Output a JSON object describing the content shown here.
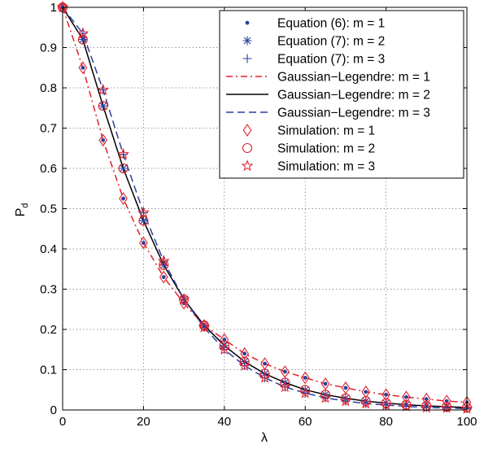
{
  "chart_data": {
    "type": "line",
    "xlabel": "λ",
    "ylabel": "P",
    "ylabel_sub": "d",
    "xlim": [
      0,
      100
    ],
    "ylim": [
      0,
      1
    ],
    "xticks": [
      0,
      20,
      40,
      60,
      80,
      100
    ],
    "yticks": [
      0,
      0.1,
      0.2,
      0.3,
      0.4,
      0.5,
      0.6,
      0.7,
      0.8,
      0.9,
      1
    ],
    "xtick_labels": [
      "0",
      "20",
      "40",
      "60",
      "80",
      "100"
    ],
    "ytick_labels": [
      "0",
      "0.1",
      "0.2",
      "0.3",
      "0.4",
      "0.5",
      "0.6",
      "0.7",
      "0.8",
      "0.9",
      "1"
    ],
    "grid": true,
    "legend_position": "top-right",
    "x": [
      0,
      5,
      10,
      15,
      20,
      25,
      30,
      35,
      40,
      45,
      50,
      55,
      60,
      65,
      70,
      75,
      80,
      85,
      90,
      95,
      100
    ],
    "series": [
      {
        "name": "Equation (6): m = 1",
        "marker": "dot",
        "line": "none",
        "color": "#2b3f9e",
        "values": [
          1.0,
          0.85,
          0.67,
          0.525,
          0.415,
          0.33,
          0.265,
          0.21,
          0.175,
          0.14,
          0.115,
          0.095,
          0.08,
          0.065,
          0.055,
          0.045,
          0.038,
          0.032,
          0.027,
          0.022,
          0.019
        ]
      },
      {
        "name": "Equation (7): m = 2",
        "marker": "asterisk",
        "line": "none",
        "color": "#2b3f9e",
        "values": [
          1.0,
          0.92,
          0.755,
          0.6,
          0.47,
          0.36,
          0.275,
          0.21,
          0.16,
          0.12,
          0.09,
          0.068,
          0.05,
          0.038,
          0.029,
          0.022,
          0.017,
          0.013,
          0.01,
          0.008,
          0.006
        ]
      },
      {
        "name": "Equation (7): m = 3",
        "marker": "plus",
        "line": "none",
        "color": "#2b3f9e",
        "values": [
          1.0,
          0.935,
          0.795,
          0.635,
          0.49,
          0.37,
          0.275,
          0.205,
          0.15,
          0.11,
          0.08,
          0.057,
          0.042,
          0.03,
          0.022,
          0.016,
          0.012,
          0.009,
          0.006,
          0.005,
          0.003
        ]
      },
      {
        "name": "Gaussian−Legendre: m = 1",
        "marker": "none",
        "line": "dashdot",
        "color": "#e0202a",
        "values": [
          1.0,
          0.85,
          0.67,
          0.525,
          0.415,
          0.33,
          0.265,
          0.21,
          0.175,
          0.14,
          0.115,
          0.095,
          0.08,
          0.065,
          0.055,
          0.045,
          0.038,
          0.032,
          0.027,
          0.022,
          0.019
        ]
      },
      {
        "name": "Gaussian−Legendre: m = 2",
        "marker": "none",
        "line": "solid",
        "color": "#000000",
        "values": [
          1.0,
          0.92,
          0.755,
          0.6,
          0.47,
          0.36,
          0.275,
          0.21,
          0.16,
          0.12,
          0.09,
          0.068,
          0.05,
          0.038,
          0.029,
          0.022,
          0.017,
          0.013,
          0.01,
          0.008,
          0.006
        ]
      },
      {
        "name": "Gaussian−Legendre: m = 3",
        "marker": "none",
        "line": "dashed",
        "color": "#2b3f9e",
        "values": [
          1.0,
          0.935,
          0.795,
          0.635,
          0.49,
          0.37,
          0.275,
          0.205,
          0.15,
          0.11,
          0.08,
          0.057,
          0.042,
          0.03,
          0.022,
          0.016,
          0.012,
          0.009,
          0.006,
          0.005,
          0.003
        ]
      },
      {
        "name": "Simulation: m = 1",
        "marker": "diamond",
        "line": "none",
        "color": "#e0202a",
        "values": [
          1.0,
          0.85,
          0.67,
          0.525,
          0.415,
          0.33,
          0.265,
          0.21,
          0.175,
          0.14,
          0.115,
          0.095,
          0.08,
          0.065,
          0.055,
          0.045,
          0.038,
          0.032,
          0.027,
          0.022,
          0.019
        ]
      },
      {
        "name": "Simulation: m = 2",
        "marker": "circle",
        "line": "none",
        "color": "#e0202a",
        "values": [
          1.0,
          0.92,
          0.755,
          0.6,
          0.47,
          0.36,
          0.275,
          0.21,
          0.16,
          0.12,
          0.09,
          0.068,
          0.05,
          0.038,
          0.029,
          0.022,
          0.017,
          0.013,
          0.01,
          0.008,
          0.006
        ]
      },
      {
        "name": "Simulation: m = 3",
        "marker": "star",
        "line": "none",
        "color": "#e0202a",
        "values": [
          1.0,
          0.935,
          0.795,
          0.635,
          0.49,
          0.37,
          0.275,
          0.205,
          0.15,
          0.11,
          0.08,
          0.057,
          0.042,
          0.03,
          0.022,
          0.016,
          0.012,
          0.009,
          0.006,
          0.005,
          0.003
        ]
      }
    ]
  }
}
